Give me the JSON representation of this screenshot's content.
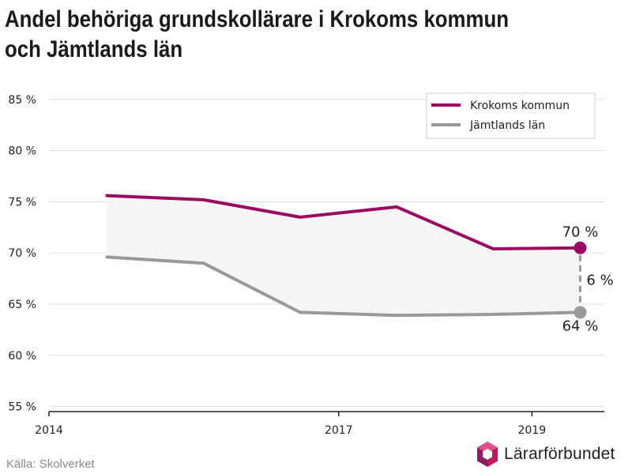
{
  "title": "Andel behöriga grundskollärare i Krokoms kommun och Jämtlands län",
  "source": "Källa: Skolverket",
  "brand": {
    "name": "Lärarförbundet",
    "logo_colors": [
      "#8c1d5e",
      "#c2185b",
      "#e0508a"
    ]
  },
  "colors": {
    "krokom": "#9b0a62",
    "jamtland": "#999999",
    "band": "#f5f5f5",
    "grid": "#dddddd",
    "axis": "#222222"
  },
  "chart_data": {
    "type": "line",
    "x": [
      2014.6,
      2015.6,
      2016.6,
      2017.6,
      2018.6,
      2019.5
    ],
    "series": [
      {
        "name": "Krokoms kommun",
        "values": [
          75.6,
          75.2,
          73.5,
          74.5,
          70.4,
          70.5
        ]
      },
      {
        "name": "Jämtlands län",
        "values": [
          69.6,
          69.0,
          64.2,
          63.9,
          64.0,
          64.2
        ]
      }
    ],
    "ylim": [
      54.5,
      87
    ],
    "xlim": [
      2014,
      2019.75
    ],
    "y_ticks": [
      55,
      60,
      65,
      70,
      75,
      80,
      85
    ],
    "y_tick_labels": [
      "55 %",
      "60 %",
      "65 %",
      "70 %",
      "75 %",
      "80 %",
      "85 %"
    ],
    "x_ticks": [
      2014,
      2017,
      2019
    ],
    "x_tick_labels": [
      "2014",
      "2017",
      "2019"
    ],
    "grid": "horizontal",
    "legend_position": "top-right",
    "end_labels": {
      "krokom": "70 %",
      "jamtland": "64 %",
      "difference": "6 %"
    },
    "xlabel": "",
    "ylabel": ""
  }
}
